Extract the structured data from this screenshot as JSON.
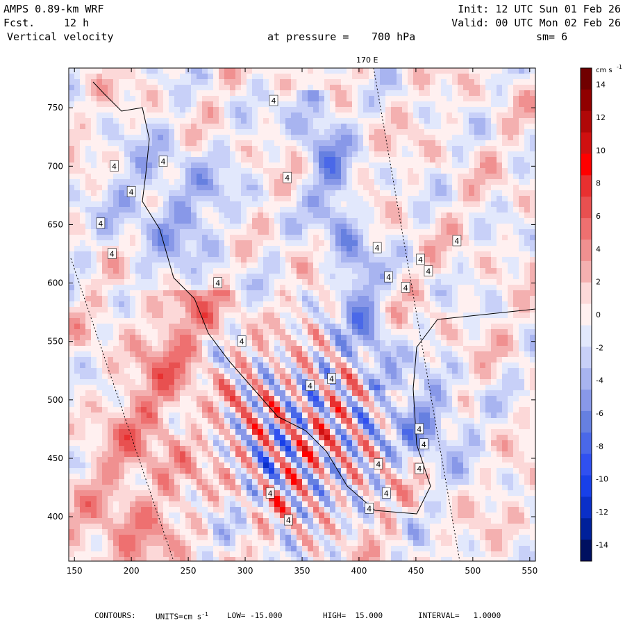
{
  "header": {
    "model": "AMPS 0.89-km WRF",
    "forecast_label": "Fcst.",
    "forecast_hours": "12 h",
    "field": "Vertical velocity",
    "init": "Init: 12 UTC Sun 01 Feb 26",
    "valid": "Valid: 00 UTC Mon 02 Feb 26",
    "pressure_label": "at pressure =",
    "pressure_value": "700 hPa",
    "smoothing": "sm= 6",
    "meridian_label": "170 E"
  },
  "footer": {
    "contours": "CONTOURS:",
    "units_label": "UNITS=cm s",
    "units_exp": "-1",
    "low": "LOW= -15.000",
    "high": "HIGH=  15.000",
    "interval": "INTERVAL=   1.0000"
  },
  "colorbar": {
    "unit": "cm s",
    "unit_exp": "-1",
    "ticks": [
      "14",
      "12",
      "10",
      "8",
      "6",
      "4",
      "2",
      "0",
      "-2",
      "-4",
      "-6",
      "-8",
      "-10",
      "-12",
      "-14"
    ],
    "colors": [
      "#001060",
      "#00209a",
      "#0a2fc8",
      "#1840e8",
      "#3050f0",
      "#4a68e8",
      "#6680e0",
      "#8898e8",
      "#a8b4f0",
      "#c8d0f8",
      "#e2e8fc",
      "#fff0f0",
      "#fcd8d8",
      "#f4b0b0",
      "#f09090",
      "#ee7070",
      "#e85050",
      "#e83030",
      "#ff0000",
      "#d01010",
      "#b00808",
      "#900000",
      "#700000"
    ]
  },
  "chart_data": {
    "type": "heatmap",
    "title": "Vertical velocity at pressure = 700 hPa",
    "units": "cm s-1",
    "x_ticks": [
      "150",
      "200",
      "250",
      "300",
      "350",
      "400",
      "450",
      "500",
      "550"
    ],
    "y_ticks": [
      "750",
      "700",
      "650",
      "600",
      "550",
      "500",
      "450",
      "400"
    ],
    "xlim": [
      145,
      555
    ],
    "ylim": [
      362,
      784
    ],
    "clim": [
      -15,
      15
    ],
    "contour_interval": 1.0,
    "contour_labels": [
      {
        "x": 325,
        "y": 756,
        "text": "4"
      },
      {
        "x": 185,
        "y": 700,
        "text": "4"
      },
      {
        "x": 228,
        "y": 704,
        "text": "4"
      },
      {
        "x": 337,
        "y": 690,
        "text": "4"
      },
      {
        "x": 200,
        "y": 678,
        "text": "4"
      },
      {
        "x": 173,
        "y": 651,
        "text": "4"
      },
      {
        "x": 183,
        "y": 625,
        "text": "4"
      },
      {
        "x": 486,
        "y": 636,
        "text": "4"
      },
      {
        "x": 416,
        "y": 630,
        "text": "4"
      },
      {
        "x": 426,
        "y": 605,
        "text": "4"
      },
      {
        "x": 461,
        "y": 610,
        "text": "4"
      },
      {
        "x": 441,
        "y": 596,
        "text": "4"
      },
      {
        "x": 454,
        "y": 620,
        "text": "4"
      },
      {
        "x": 276,
        "y": 600,
        "text": "4"
      },
      {
        "x": 297,
        "y": 550,
        "text": "4"
      },
      {
        "x": 376,
        "y": 518,
        "text": "4"
      },
      {
        "x": 357,
        "y": 512,
        "text": "4"
      },
      {
        "x": 453,
        "y": 475,
        "text": "4"
      },
      {
        "x": 457,
        "y": 462,
        "text": "4"
      },
      {
        "x": 417,
        "y": 445,
        "text": "4"
      },
      {
        "x": 453,
        "y": 441,
        "text": "4"
      },
      {
        "x": 322,
        "y": 420,
        "text": "4"
      },
      {
        "x": 424,
        "y": 420,
        "text": "4"
      },
      {
        "x": 409,
        "y": 407,
        "text": "4"
      },
      {
        "x": 338,
        "y": 397,
        "text": "4"
      }
    ]
  }
}
